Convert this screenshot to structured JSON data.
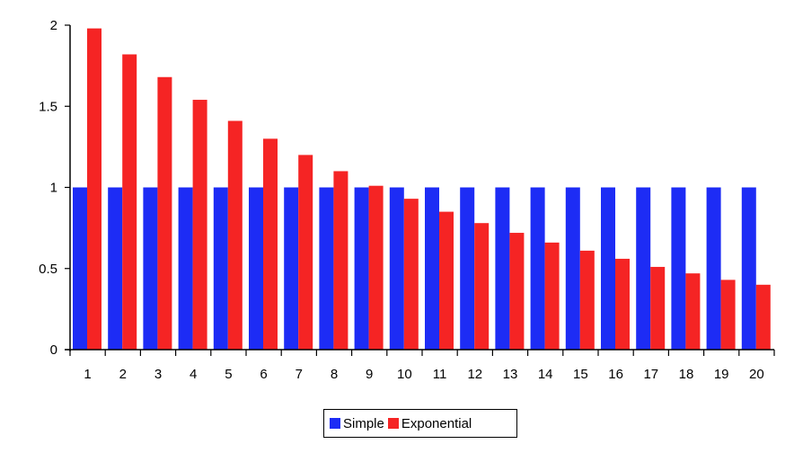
{
  "chart_data": {
    "type": "bar",
    "categories": [
      "1",
      "2",
      "3",
      "4",
      "5",
      "6",
      "7",
      "8",
      "9",
      "10",
      "11",
      "12",
      "13",
      "14",
      "15",
      "16",
      "17",
      "18",
      "19",
      "20"
    ],
    "series": [
      {
        "name": "Simple",
        "color": "#1d2cf5",
        "values": [
          1,
          1,
          1,
          1,
          1,
          1,
          1,
          1,
          1,
          1,
          1,
          1,
          1,
          1,
          1,
          1,
          1,
          1,
          1,
          1
        ]
      },
      {
        "name": "Exponential",
        "color": "#f52424",
        "values": [
          1.98,
          1.82,
          1.68,
          1.54,
          1.41,
          1.3,
          1.2,
          1.1,
          1.01,
          0.93,
          0.85,
          0.78,
          0.72,
          0.66,
          0.61,
          0.56,
          0.51,
          0.47,
          0.43,
          0.4
        ]
      }
    ],
    "ylim": [
      0,
      2
    ],
    "yticks": [
      "0",
      "0.5",
      "1",
      "1.5",
      "2"
    ],
    "title": "",
    "xlabel": "",
    "ylabel": "",
    "legend": "bottom-center",
    "grid": false
  }
}
